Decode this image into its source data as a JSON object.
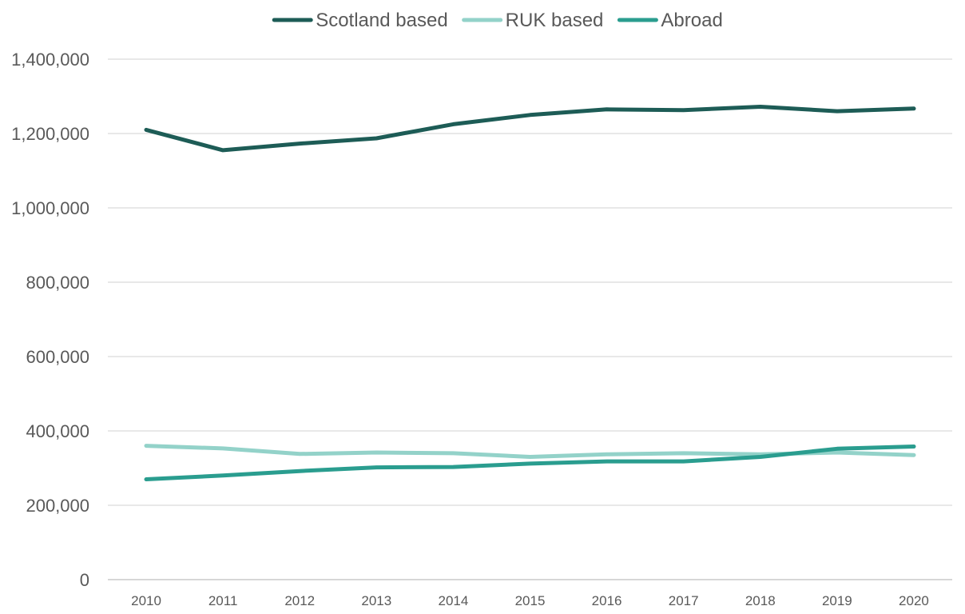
{
  "chart_data": {
    "type": "line",
    "title": "",
    "xlabel": "",
    "ylabel": "",
    "categories": [
      "2010",
      "2011",
      "2012",
      "2013",
      "2014",
      "2015",
      "2016",
      "2017",
      "2018",
      "2019",
      "2020"
    ],
    "ylim": [
      0,
      1400000
    ],
    "yticks": [
      0,
      200000,
      400000,
      600000,
      800000,
      1000000,
      1200000,
      1400000
    ],
    "ytick_labels": [
      "0",
      "200,000",
      "400,000",
      "600,000",
      "800,000",
      "1,000,000",
      "1,200,000",
      "1,400,000"
    ],
    "grid": true,
    "legend_position": "top",
    "series": [
      {
        "name": "Scotland based",
        "color": "#1d5c56",
        "values": [
          1210000,
          1155000,
          1173000,
          1187000,
          1225000,
          1250000,
          1265000,
          1263000,
          1272000,
          1260000,
          1267000
        ]
      },
      {
        "name": "RUK based",
        "color": "#93d2c9",
        "values": [
          360000,
          353000,
          338000,
          342000,
          340000,
          330000,
          337000,
          340000,
          337000,
          342000,
          335000
        ]
      },
      {
        "name": "Abroad",
        "color": "#2a9d8f",
        "values": [
          270000,
          280000,
          292000,
          302000,
          303000,
          312000,
          318000,
          318000,
          330000,
          352000,
          358000
        ]
      }
    ]
  }
}
